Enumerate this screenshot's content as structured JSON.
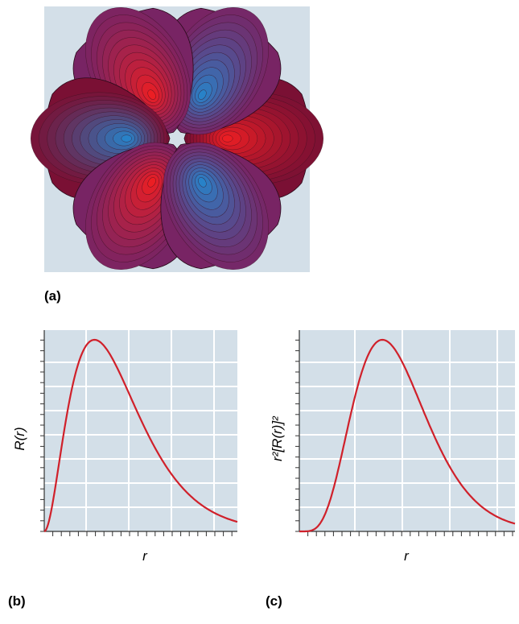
{
  "panels": [
    {
      "label": "(a)"
    },
    {
      "label": "(b)",
      "y_label": "R(r)",
      "x_label": "r"
    },
    {
      "label": "(c)",
      "y_label": "r²[R(r)]²",
      "x_label": "r"
    }
  ]
}
